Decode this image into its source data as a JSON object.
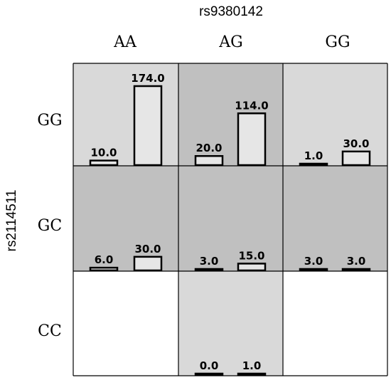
{
  "chart_data": {
    "type": "bar",
    "title": "rs9380142",
    "ylabel": "rs2114511",
    "col_categories": [
      "AA",
      "AG",
      "GG"
    ],
    "row_categories": [
      "GG",
      "GC",
      "CC"
    ],
    "bar_max": 174.0,
    "colors": {
      "cell_light": "#d9d9d9",
      "cell_dark": "#c0c0c0",
      "cell_white": "#ffffff",
      "bar_fill": "#e6e6e6",
      "bar_stroke": "#000000"
    },
    "cells": [
      {
        "row": "GG",
        "col": "AA",
        "shade": "light",
        "values": [
          10.0,
          174.0
        ],
        "labels": [
          "10.0",
          "174.0"
        ]
      },
      {
        "row": "GG",
        "col": "AG",
        "shade": "dark",
        "values": [
          20.0,
          114.0
        ],
        "labels": [
          "20.0",
          "114.0"
        ]
      },
      {
        "row": "GG",
        "col": "GG",
        "shade": "light",
        "values": [
          1.0,
          30.0
        ],
        "labels": [
          "1.0",
          "30.0"
        ]
      },
      {
        "row": "GC",
        "col": "AA",
        "shade": "dark",
        "values": [
          6.0,
          30.0
        ],
        "labels": [
          "6.0",
          "30.0"
        ]
      },
      {
        "row": "GC",
        "col": "AG",
        "shade": "dark",
        "values": [
          3.0,
          15.0
        ],
        "labels": [
          "3.0",
          "15.0"
        ]
      },
      {
        "row": "GC",
        "col": "GG",
        "shade": "dark",
        "values": [
          3.0,
          3.0
        ],
        "labels": [
          "3.0",
          "3.0"
        ]
      },
      {
        "row": "CC",
        "col": "AA",
        "shade": "white",
        "values": [],
        "labels": []
      },
      {
        "row": "CC",
        "col": "AG",
        "shade": "light",
        "values": [
          0.0,
          1.0
        ],
        "labels": [
          "0.0",
          "1.0"
        ]
      },
      {
        "row": "CC",
        "col": "GG",
        "shade": "white",
        "values": [],
        "labels": []
      }
    ]
  }
}
